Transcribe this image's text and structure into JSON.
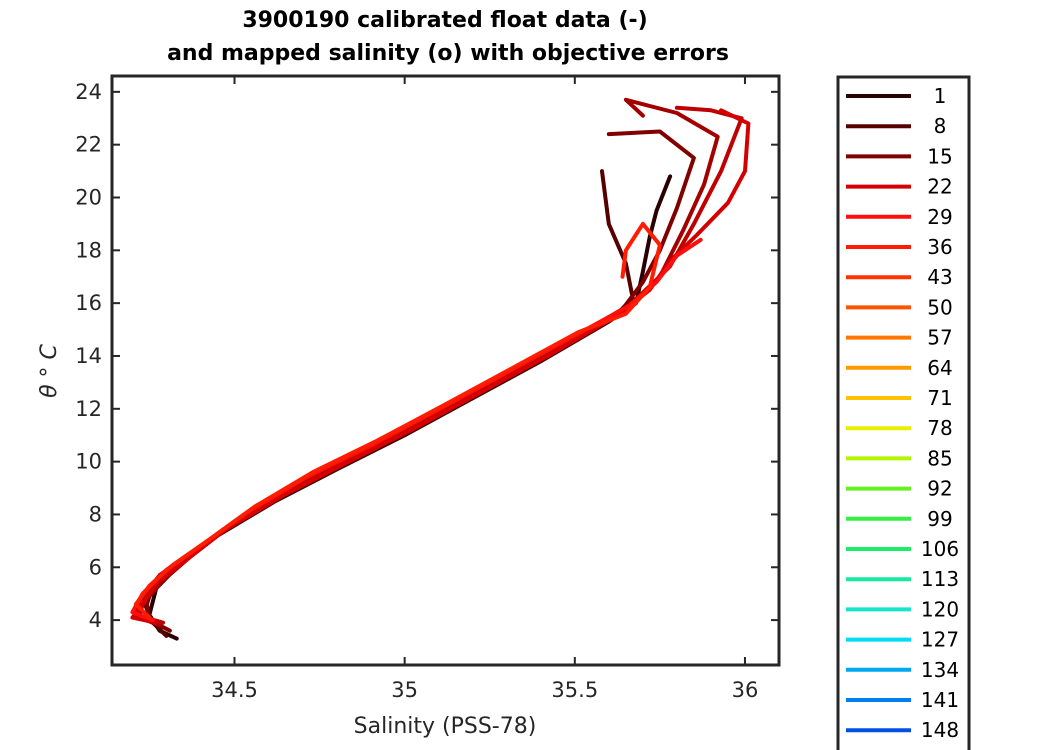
{
  "chart_data": {
    "type": "line",
    "title": "3900190 calibrated float data (-)",
    "subtitle": "and mapped salinity (o) with objective errors",
    "xlabel": "Salinity (PSS-78)",
    "ylabel": "θ ° C",
    "xlim": [
      34.14,
      36.1
    ],
    "ylim": [
      2.3,
      24.6
    ],
    "xticks": [
      34.5,
      35,
      35.5,
      36
    ],
    "xtick_labels": [
      "34.5",
      "35",
      "35.5",
      "36"
    ],
    "yticks": [
      4,
      6,
      8,
      10,
      12,
      14,
      16,
      18,
      20,
      22,
      24
    ],
    "ytick_labels": [
      "4",
      "6",
      "8",
      "10",
      "12",
      "14",
      "16",
      "18",
      "20",
      "22",
      "24"
    ],
    "grid": false,
    "legend_position": "outside-right",
    "legend": [
      {
        "label": "1",
        "color": "#2a0000"
      },
      {
        "label": "8",
        "color": "#560000"
      },
      {
        "label": "15",
        "color": "#800000"
      },
      {
        "label": "22",
        "color": "#d40000"
      },
      {
        "label": "29",
        "color": "#ff0e0e"
      },
      {
        "label": "36",
        "color": "#ff1c00"
      },
      {
        "label": "43",
        "color": "#ff3300"
      },
      {
        "label": "50",
        "color": "#ff5500"
      },
      {
        "label": "57",
        "color": "#ff7700"
      },
      {
        "label": "64",
        "color": "#ff9900"
      },
      {
        "label": "71",
        "color": "#ffc200"
      },
      {
        "label": "78",
        "color": "#e6f000"
      },
      {
        "label": "85",
        "color": "#b4f500"
      },
      {
        "label": "92",
        "color": "#66f020"
      },
      {
        "label": "99",
        "color": "#33f044"
      },
      {
        "label": "106",
        "color": "#19ee66"
      },
      {
        "label": "113",
        "color": "#14eaa0"
      },
      {
        "label": "120",
        "color": "#14e6cc"
      },
      {
        "label": "127",
        "color": "#00ddf5"
      },
      {
        "label": "134",
        "color": "#00a8f0"
      },
      {
        "label": "141",
        "color": "#0080f0"
      },
      {
        "label": "148",
        "color": "#0050e8"
      }
    ],
    "series": [
      {
        "color": "#2a0000",
        "points": [
          [
            34.33,
            3.3
          ],
          [
            34.28,
            3.6
          ],
          [
            34.25,
            4.2
          ],
          [
            34.27,
            5.2
          ],
          [
            34.33,
            6.0
          ],
          [
            34.45,
            7.2
          ],
          [
            34.62,
            8.5
          ],
          [
            34.8,
            9.7
          ],
          [
            35.0,
            11.0
          ],
          [
            35.2,
            12.4
          ],
          [
            35.4,
            13.8
          ],
          [
            35.6,
            15.3
          ],
          [
            35.68,
            16.0
          ],
          [
            35.7,
            17.2
          ],
          [
            35.72,
            18.5
          ],
          [
            35.74,
            19.5
          ],
          [
            35.78,
            20.8
          ]
        ]
      },
      {
        "color": "#560000",
        "points": [
          [
            34.3,
            3.4
          ],
          [
            34.26,
            3.9
          ],
          [
            34.24,
            4.5
          ],
          [
            34.26,
            5.3
          ],
          [
            34.34,
            6.1
          ],
          [
            34.46,
            7.3
          ],
          [
            34.63,
            8.6
          ],
          [
            34.81,
            9.8
          ],
          [
            35.01,
            11.1
          ],
          [
            35.21,
            12.5
          ],
          [
            35.41,
            13.9
          ],
          [
            35.61,
            15.4
          ],
          [
            35.67,
            16.2
          ],
          [
            35.65,
            17.5
          ],
          [
            35.6,
            19.0
          ],
          [
            35.58,
            21.0
          ]
        ]
      },
      {
        "color": "#800000",
        "points": [
          [
            34.31,
            3.6
          ],
          [
            34.25,
            4.0
          ],
          [
            34.24,
            4.8
          ],
          [
            34.28,
            5.6
          ],
          [
            34.36,
            6.3
          ],
          [
            34.48,
            7.5
          ],
          [
            34.65,
            8.8
          ],
          [
            34.83,
            10.0
          ],
          [
            35.03,
            11.3
          ],
          [
            35.23,
            12.7
          ],
          [
            35.43,
            14.1
          ],
          [
            35.63,
            15.6
          ],
          [
            35.7,
            16.8
          ],
          [
            35.75,
            18.0
          ],
          [
            35.8,
            19.6
          ],
          [
            35.85,
            21.5
          ],
          [
            35.75,
            22.5
          ],
          [
            35.6,
            22.4
          ]
        ]
      },
      {
        "color": "#a30000",
        "points": [
          [
            34.28,
            3.8
          ],
          [
            34.22,
            4.1
          ],
          [
            34.23,
            4.6
          ],
          [
            34.29,
            5.5
          ],
          [
            34.37,
            6.4
          ],
          [
            34.5,
            7.7
          ],
          [
            34.67,
            9.0
          ],
          [
            34.86,
            10.2
          ],
          [
            35.05,
            11.5
          ],
          [
            35.25,
            12.9
          ],
          [
            35.45,
            14.3
          ],
          [
            35.65,
            15.8
          ],
          [
            35.75,
            17.0
          ],
          [
            35.82,
            18.8
          ],
          [
            35.88,
            20.5
          ],
          [
            35.92,
            22.3
          ],
          [
            35.8,
            23.2
          ],
          [
            35.65,
            23.7
          ],
          [
            35.7,
            23.1
          ]
        ]
      },
      {
        "color": "#c00000",
        "points": [
          [
            34.29,
            3.9
          ],
          [
            34.21,
            4.2
          ],
          [
            34.22,
            4.7
          ],
          [
            34.28,
            5.7
          ],
          [
            34.38,
            6.6
          ],
          [
            34.52,
            7.9
          ],
          [
            34.69,
            9.2
          ],
          [
            34.88,
            10.4
          ],
          [
            35.07,
            11.7
          ],
          [
            35.27,
            13.1
          ],
          [
            35.47,
            14.5
          ],
          [
            35.67,
            16.0
          ],
          [
            35.78,
            17.4
          ],
          [
            35.85,
            19.0
          ],
          [
            35.93,
            21.0
          ],
          [
            35.99,
            23.0
          ],
          [
            35.9,
            23.3
          ],
          [
            35.8,
            23.4
          ]
        ]
      },
      {
        "color": "#d40000",
        "points": [
          [
            34.27,
            3.9
          ],
          [
            34.2,
            4.1
          ],
          [
            34.22,
            4.4
          ],
          [
            34.27,
            5.4
          ],
          [
            34.35,
            6.2
          ],
          [
            34.47,
            7.4
          ],
          [
            34.64,
            8.7
          ],
          [
            34.82,
            9.9
          ],
          [
            35.02,
            11.2
          ],
          [
            35.22,
            12.6
          ],
          [
            35.42,
            14.0
          ],
          [
            35.62,
            15.5
          ],
          [
            35.72,
            16.5
          ],
          [
            35.78,
            17.6
          ],
          [
            35.86,
            18.6
          ],
          [
            35.95,
            19.8
          ],
          [
            36.0,
            21.0
          ],
          [
            36.01,
            22.8
          ],
          [
            35.93,
            23.3
          ]
        ]
      },
      {
        "color": "#ff0e0e",
        "points": [
          [
            34.26,
            4.0
          ],
          [
            34.2,
            4.3
          ],
          [
            34.23,
            5.0
          ],
          [
            34.3,
            5.9
          ],
          [
            34.4,
            6.8
          ],
          [
            34.54,
            8.1
          ],
          [
            34.71,
            9.4
          ],
          [
            34.9,
            10.6
          ],
          [
            35.09,
            11.9
          ],
          [
            35.29,
            13.3
          ],
          [
            35.49,
            14.7
          ],
          [
            35.66,
            15.9
          ],
          [
            35.74,
            16.8
          ],
          [
            35.8,
            17.8
          ],
          [
            35.87,
            18.4
          ]
        ]
      },
      {
        "color": "#ff1c00",
        "points": [
          [
            34.25,
            4.1
          ],
          [
            34.21,
            4.6
          ],
          [
            34.25,
            5.3
          ],
          [
            34.32,
            6.1
          ],
          [
            34.42,
            7.0
          ],
          [
            34.56,
            8.3
          ],
          [
            34.73,
            9.6
          ],
          [
            34.92,
            10.8
          ],
          [
            35.11,
            12.1
          ],
          [
            35.31,
            13.5
          ],
          [
            35.51,
            14.9
          ],
          [
            35.65,
            15.6
          ],
          [
            35.72,
            16.6
          ],
          [
            35.75,
            18.2
          ],
          [
            35.7,
            19.0
          ],
          [
            35.65,
            18.0
          ],
          [
            35.64,
            17.0
          ]
        ]
      }
    ]
  }
}
